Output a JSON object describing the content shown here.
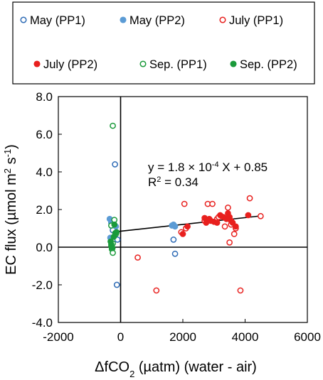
{
  "chart_data": {
    "type": "scatter",
    "xlabel": "ΔfCO₂ (µatm)  (water - air)",
    "ylabel": "EC flux (µmol m² s⁻¹)",
    "xlim": [
      -2000,
      6000
    ],
    "ylim": [
      -4.0,
      8.0
    ],
    "x_ticks": [
      -2000,
      0,
      2000,
      4000,
      6000
    ],
    "x_tick_labels": [
      "-2000",
      "0",
      "2000",
      "4000",
      "6000"
    ],
    "y_ticks": [
      -4,
      -2,
      0,
      2,
      4,
      6,
      8
    ],
    "y_tick_labels": [
      "-4.0",
      "-2.0",
      "0.0",
      "2.0",
      "4.0",
      "6.0",
      "8.0"
    ],
    "grid": false,
    "legend_position": "top",
    "zero_lines": true,
    "annotation": {
      "equation": "y = 1.8 × 10⁻⁴ X + 0.85",
      "r2": "R² = 0.34"
    },
    "trendline": {
      "slope": 0.00018,
      "intercept": 0.85,
      "x_range": [
        -300,
        4500
      ],
      "color": "#000000"
    },
    "series": [
      {
        "name": "May (PP1)",
        "color": "#2e6bb5",
        "filled": false,
        "points": [
          [
            -180,
            4.4
          ],
          [
            -300,
            1.3
          ],
          [
            -250,
            0.9
          ],
          [
            -100,
            0.4
          ],
          [
            -120,
            -2.0
          ],
          [
            1700,
            0.4
          ],
          [
            1750,
            -0.35
          ]
        ]
      },
      {
        "name": "May (PP2)",
        "color": "#5b9bd5",
        "filled": true,
        "points": [
          [
            -350,
            1.5
          ],
          [
            -300,
            1.3
          ],
          [
            -220,
            1.2
          ],
          [
            -150,
            1.1
          ],
          [
            -330,
            0.5
          ],
          [
            1700,
            1.2
          ],
          [
            1750,
            1.1
          ],
          [
            1650,
            1.15
          ]
        ]
      },
      {
        "name": "July (PP1)",
        "color": "#e8201e",
        "filled": false,
        "points": [
          [
            550,
            -0.55
          ],
          [
            1150,
            -2.3
          ],
          [
            1950,
            0.8
          ],
          [
            2050,
            2.3
          ],
          [
            2100,
            1.0
          ],
          [
            2700,
            1.4
          ],
          [
            2800,
            2.3
          ],
          [
            2950,
            2.3
          ],
          [
            3100,
            1.5
          ],
          [
            3150,
            1.6
          ],
          [
            3350,
            1.1
          ],
          [
            3450,
            2.1
          ],
          [
            3500,
            0.25
          ],
          [
            3550,
            1.2
          ],
          [
            3650,
            0.7
          ],
          [
            3700,
            1.0
          ],
          [
            3850,
            -2.3
          ],
          [
            4150,
            2.6
          ],
          [
            4500,
            1.65
          ]
        ]
      },
      {
        "name": "July (PP2)",
        "color": "#e8201e",
        "filled": true,
        "points": [
          [
            2000,
            0.7
          ],
          [
            2150,
            1.1
          ],
          [
            2700,
            1.55
          ],
          [
            2750,
            1.3
          ],
          [
            2850,
            1.5
          ],
          [
            2900,
            1.4
          ],
          [
            3000,
            1.35
          ],
          [
            3100,
            1.3
          ],
          [
            3200,
            1.7
          ],
          [
            3300,
            1.6
          ],
          [
            3400,
            1.5
          ],
          [
            3450,
            1.8
          ],
          [
            3500,
            1.6
          ],
          [
            3550,
            1.4
          ],
          [
            3600,
            1.3
          ],
          [
            3700,
            1.1
          ],
          [
            4100,
            1.7
          ]
        ]
      },
      {
        "name": "Sep. (PP1)",
        "color": "#1a9a3a",
        "filled": false,
        "points": [
          [
            -250,
            6.45
          ],
          [
            -300,
            1.15
          ],
          [
            -200,
            1.45
          ],
          [
            -150,
            0.7
          ],
          [
            -250,
            0.2
          ],
          [
            -300,
            0.05
          ],
          [
            -280,
            -0.1
          ],
          [
            -250,
            -0.3
          ]
        ]
      },
      {
        "name": "Sep. (PP2)",
        "color": "#1a9a3a",
        "filled": true,
        "points": [
          [
            -320,
            0.3
          ],
          [
            -300,
            0.15
          ],
          [
            -280,
            0.0
          ],
          [
            -260,
            -0.05
          ],
          [
            -220,
            0.55
          ],
          [
            -170,
            0.75
          ],
          [
            -130,
            0.8
          ],
          [
            -200,
            1.2
          ]
        ]
      }
    ]
  }
}
